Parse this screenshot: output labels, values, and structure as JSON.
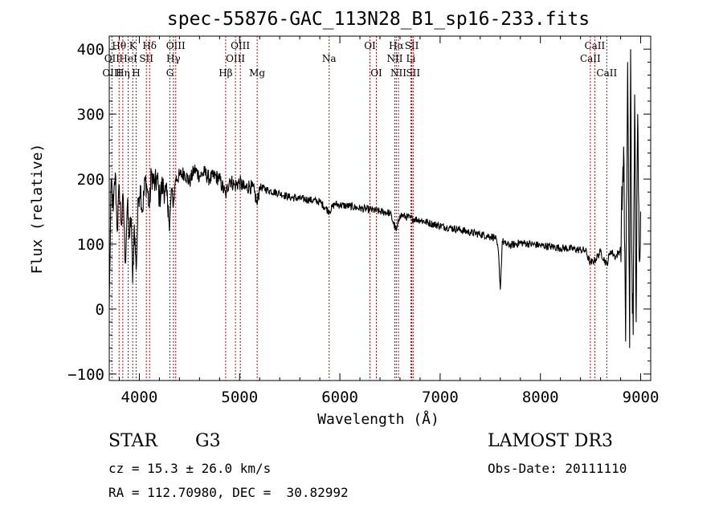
{
  "chart_data": {
    "type": "line",
    "title": "spec-55876-GAC_113N28_B1_sp16-233.fits",
    "xlabel": "Wavelength (Å)",
    "ylabel": "Flux (relative)",
    "xlim": [
      3700,
      9100
    ],
    "ylim": [
      -110,
      420
    ],
    "xticks": [
      4000,
      5000,
      6000,
      7000,
      8000,
      9000
    ],
    "yticks": [
      -100,
      0,
      100,
      200,
      300,
      400
    ],
    "xtick_labels": [
      "4000",
      "5000",
      "6000",
      "7000",
      "8000",
      "9000"
    ],
    "ytick_labels": [
      "−100",
      "0",
      "100",
      "200",
      "300",
      "400"
    ],
    "series": [
      {
        "name": "flux",
        "x": [
          3700,
          3720,
          3740,
          3760,
          3780,
          3800,
          3820,
          3840,
          3860,
          3880,
          3900,
          3920,
          3933,
          3950,
          3968,
          3990,
          4010,
          4030,
          4060,
          4080,
          4101,
          4120,
          4150,
          4180,
          4200,
          4230,
          4260,
          4290,
          4300,
          4320,
          4340,
          4360,
          4400,
          4450,
          4500,
          4550,
          4600,
          4650,
          4700,
          4750,
          4800,
          4861,
          4900,
          4950,
          5000,
          5050,
          5100,
          5150,
          5175,
          5200,
          5300,
          5400,
          5500,
          5600,
          5700,
          5800,
          5893,
          5950,
          6000,
          6100,
          6200,
          6300,
          6400,
          6500,
          6563,
          6600,
          6700,
          6800,
          6900,
          7000,
          7100,
          7200,
          7300,
          7400,
          7500,
          7550,
          7580,
          7600,
          7620,
          7650,
          7700,
          7800,
          7900,
          8000,
          8100,
          8200,
          8300,
          8400,
          8450,
          8498,
          8542,
          8600,
          8662,
          8700,
          8750,
          8800,
          8830,
          8850,
          8870,
          8890,
          8900,
          8910,
          8925,
          8940,
          8955,
          8970,
          8985,
          9000
        ],
        "y": [
          5,
          200,
          150,
          210,
          120,
          190,
          130,
          170,
          70,
          160,
          110,
          140,
          40,
          130,
          60,
          170,
          190,
          150,
          200,
          185,
          155,
          210,
          190,
          200,
          170,
          190,
          180,
          160,
          120,
          185,
          160,
          200,
          205,
          210,
          195,
          215,
          205,
          210,
          200,
          205,
          200,
          175,
          200,
          190,
          195,
          185,
          190,
          180,
          160,
          188,
          182,
          178,
          172,
          170,
          168,
          165,
          150,
          162,
          160,
          158,
          155,
          153,
          150,
          148,
          120,
          145,
          140,
          137,
          132,
          128,
          125,
          122,
          118,
          115,
          112,
          110,
          90,
          30,
          105,
          100,
          98,
          102,
          100,
          98,
          96,
          94,
          93,
          91,
          90,
          70,
          75,
          88,
          68,
          90,
          80,
          92,
          250,
          -50,
          380,
          -60,
          400,
          100,
          -40,
          330,
          -20,
          300,
          80,
          150
        ]
      }
    ],
    "spectral_lines": [
      {
        "label": "Hθ",
        "wl": 3798,
        "row": 1
      },
      {
        "label": "OII",
        "wl": 3727,
        "row": 2
      },
      {
        "label": "OIII",
        "wl": 3727,
        "row": 3
      },
      {
        "label": "K",
        "wl": 3934,
        "row": 1
      },
      {
        "label": "HeI",
        "wl": 3889,
        "row": 2
      },
      {
        "label": "Hη",
        "wl": 3835,
        "row": 3
      },
      {
        "label": "SII",
        "wl": 4070,
        "row": 2
      },
      {
        "label": "H",
        "wl": 3968,
        "row": 3
      },
      {
        "label": "Hδ",
        "wl": 4102,
        "row": 1
      },
      {
        "label": "OIII",
        "wl": 4363,
        "row": 1
      },
      {
        "label": "Hγ",
        "wl": 4340,
        "row": 2
      },
      {
        "label": "G",
        "wl": 4305,
        "row": 3
      },
      {
        "label": "Hβ",
        "wl": 4861,
        "row": 3
      },
      {
        "label": "OIII",
        "wl": 5007,
        "row": 1
      },
      {
        "label": "OIII",
        "wl": 4959,
        "row": 2
      },
      {
        "label": "Mg",
        "wl": 5175,
        "row": 3
      },
      {
        "label": "Na",
        "wl": 5893,
        "row": 2
      },
      {
        "label": "OI",
        "wl": 6300,
        "row": 1
      },
      {
        "label": "OI",
        "wl": 6364,
        "row": 3
      },
      {
        "label": "Hα",
        "wl": 6563,
        "row": 1
      },
      {
        "label": "NII",
        "wl": 6548,
        "row": 2
      },
      {
        "label": "NII",
        "wl": 6584,
        "row": 3
      },
      {
        "label": "SII",
        "wl": 6717,
        "row": 1
      },
      {
        "label": "Li",
        "wl": 6708,
        "row": 2
      },
      {
        "label": "SII",
        "wl": 6731,
        "row": 3
      },
      {
        "label": "CaII",
        "wl": 8542,
        "row": 1
      },
      {
        "label": "CaII",
        "wl": 8498,
        "row": 2
      },
      {
        "label": "CaII",
        "wl": 8662,
        "row": 3
      }
    ],
    "line_marker_color": "#cc0000"
  },
  "info": {
    "class": "STAR",
    "subclass": "G3",
    "survey": "LAMOST DR3",
    "cz": "cz = 15.3 ± 26.0 km/s",
    "obs_date": "Obs-Date: 20111110",
    "radec": "RA = 112.70980, DEC =  30.82992"
  }
}
